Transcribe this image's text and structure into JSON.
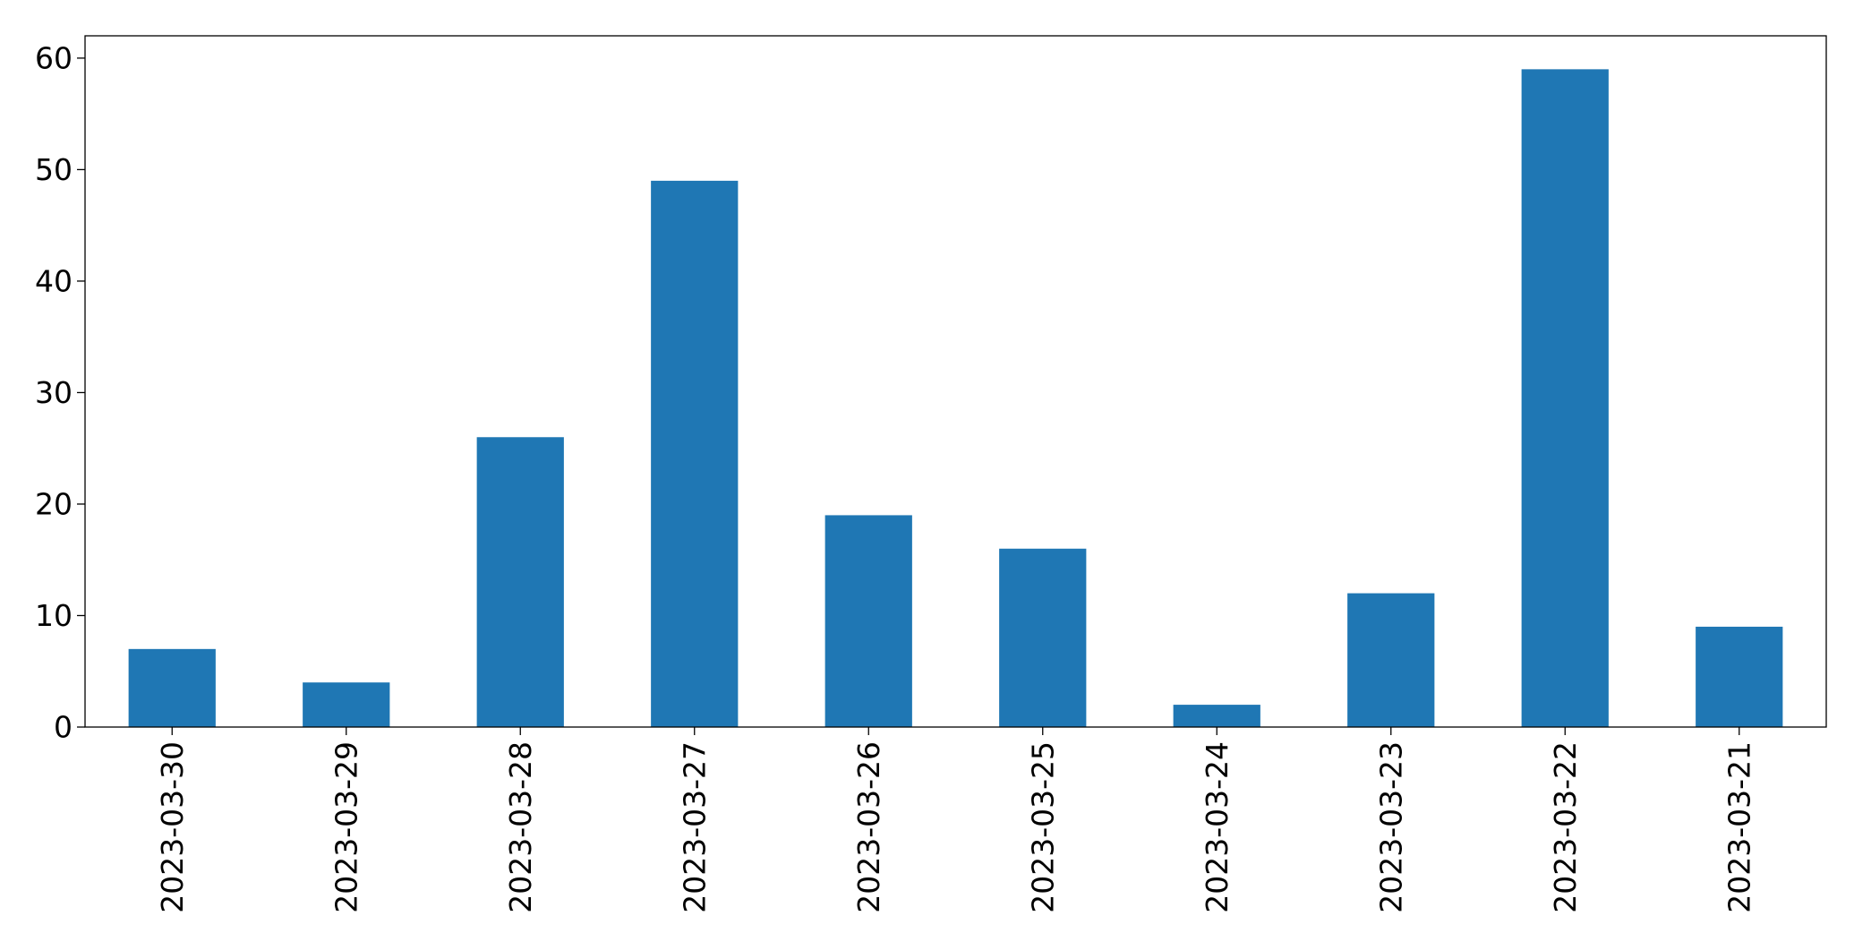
{
  "chart_data": {
    "type": "bar",
    "title": "",
    "xlabel": "",
    "ylabel": "",
    "categories": [
      "2023-03-30",
      "2023-03-29",
      "2023-03-28",
      "2023-03-27",
      "2023-03-26",
      "2023-03-25",
      "2023-03-24",
      "2023-03-23",
      "2023-03-22",
      "2023-03-21"
    ],
    "values": [
      7,
      4,
      26,
      49,
      19,
      16,
      2,
      12,
      59,
      9
    ],
    "ylim": [
      0,
      62
    ],
    "yticks": [
      0,
      10,
      20,
      30,
      40,
      50,
      60
    ],
    "grid": false,
    "legend": "none",
    "colors": {
      "bar": "#1f77b4",
      "axis": "#000000"
    }
  }
}
